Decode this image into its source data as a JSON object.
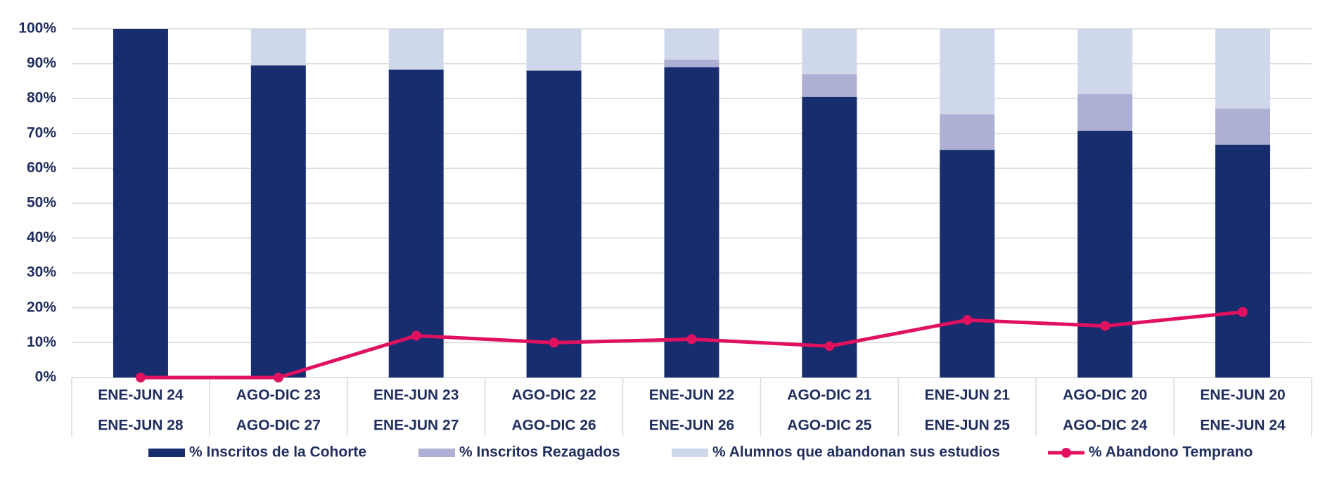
{
  "chart_data": {
    "type": "bar-line",
    "categories": [
      [
        "ENE-JUN 24",
        "ENE-JUN 28"
      ],
      [
        "AGO-DIC 23",
        "AGO-DIC 27"
      ],
      [
        "ENE-JUN 23",
        "ENE-JUN 27"
      ],
      [
        "AGO-DIC 22",
        "AGO-DIC 26"
      ],
      [
        "ENE-JUN 22",
        "ENE-JUN 26"
      ],
      [
        "AGO-DIC 21",
        "AGO-DIC 25"
      ],
      [
        "ENE-JUN 21",
        "ENE-JUN 25"
      ],
      [
        "AGO-DIC 20",
        "AGO-DIC 24"
      ],
      [
        "ENE-JUN 20",
        "ENE-JUN 24"
      ]
    ],
    "series": [
      {
        "name": "% Inscritos de la Cohorte",
        "type": "bar",
        "color": "#172d6e",
        "values": [
          100,
          89.5,
          88.3,
          88,
          89,
          80.5,
          65.3,
          70.8,
          66.8
        ]
      },
      {
        "name": "% Inscritos Rezagados",
        "type": "bar",
        "color": "#adb0d4",
        "values": [
          0,
          0,
          0,
          0,
          2.2,
          6.5,
          10.2,
          10.5,
          10.3
        ]
      },
      {
        "name": "% Alumnos que abandonan sus estudios",
        "type": "bar",
        "color": "#cfd8ea",
        "values": [
          0,
          10.5,
          11.7,
          12,
          8.8,
          13,
          24.5,
          18.7,
          22.9
        ]
      },
      {
        "name": "% Abandono Temprano",
        "type": "line",
        "color": "#e0115f",
        "values": [
          0,
          0,
          12,
          10,
          11,
          9,
          16.5,
          14.8,
          18.8
        ]
      }
    ],
    "stacked": true,
    "ylim": [
      0,
      100
    ],
    "yticks": [
      {
        "value": 0,
        "label": "0%"
      },
      {
        "value": 10,
        "label": "10%"
      },
      {
        "value": 20,
        "label": "20%"
      },
      {
        "value": 30,
        "label": "30%"
      },
      {
        "value": 40,
        "label": "40%"
      },
      {
        "value": 50,
        "label": "50%"
      },
      {
        "value": 60,
        "label": "60%"
      },
      {
        "value": 70,
        "label": "70%"
      },
      {
        "value": 80,
        "label": "80%"
      },
      {
        "value": 90,
        "label": "90%"
      },
      {
        "value": 100,
        "label": "100%"
      }
    ],
    "grid": true,
    "legend": "bottom"
  }
}
